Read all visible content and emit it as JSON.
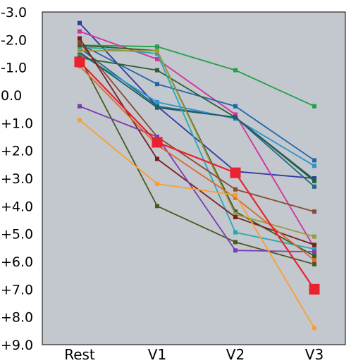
{
  "chart_data": {
    "type": "line",
    "title": "",
    "xlabel": "",
    "ylabel": "",
    "categories": [
      "Rest",
      "V1",
      "V2",
      "V3"
    ],
    "y_tick_labels": [
      "-3.0",
      "-2.0",
      "-1.0",
      "0.0",
      "+1.0",
      "+2.0",
      "+3.0",
      "+4.0",
      "+5.0",
      "+6.0",
      "+7.0",
      "+8.0",
      "+9.0"
    ],
    "ylim": [
      -3.0,
      9.0
    ],
    "y_inverted": true,
    "grid": false,
    "legend": "none",
    "plot_background": "#c3c7ce",
    "series": [
      {
        "color": "#2e3aa0",
        "values": [
          -2.6,
          0.4,
          2.75,
          3.0
        ]
      },
      {
        "color": "#23a048",
        "values": [
          -1.8,
          -1.75,
          -0.9,
          0.4
        ]
      },
      {
        "color": "#d42fa0",
        "values": [
          -2.3,
          -1.3,
          0.7,
          5.5
        ]
      },
      {
        "color": "#2266a8",
        "values": [
          -1.85,
          -0.4,
          0.4,
          2.35
        ]
      },
      {
        "color": "#1d6a86",
        "values": [
          -1.7,
          0.4,
          0.8,
          3.3
        ]
      },
      {
        "color": "#2a94cc",
        "values": [
          -1.5,
          0.25,
          0.85,
          2.55
        ]
      },
      {
        "color": "#2f5f2f",
        "values": [
          -1.35,
          -0.9,
          0.8,
          3.1
        ]
      },
      {
        "color": "#1e5e5e",
        "values": [
          -1.55,
          0.45,
          0.8,
          3.05
        ]
      },
      {
        "color": "#2aa8b0",
        "values": [
          -1.75,
          -1.5,
          4.95,
          5.55
        ]
      },
      {
        "color": "#3d5a25",
        "values": [
          -1.8,
          -1.6,
          4.2,
          5.8
        ]
      },
      {
        "color": "#9b9b3d",
        "values": [
          -1.6,
          -1.6,
          4.3,
          5.1
        ]
      },
      {
        "color": "#8a4a30",
        "values": [
          -1.9,
          1.5,
          3.4,
          4.2
        ]
      },
      {
        "color": "#7a1e20",
        "values": [
          -2.05,
          2.3,
          4.4,
          5.4
        ]
      },
      {
        "color": "#4a5a1e",
        "values": [
          -1.35,
          4.0,
          5.3,
          6.1
        ]
      },
      {
        "color": "#7b3db0",
        "values": [
          0.4,
          1.5,
          5.6,
          5.65
        ]
      },
      {
        "color": "#d96a26",
        "values": [
          -1.05,
          1.8,
          3.7,
          5.95
        ]
      },
      {
        "color": "#f7a030",
        "values": [
          0.9,
          3.2,
          3.6,
          8.4
        ]
      },
      {
        "color": "#e8222e",
        "values": [
          -1.2,
          1.7,
          2.8,
          7.0
        ],
        "large_markers": true
      }
    ]
  }
}
